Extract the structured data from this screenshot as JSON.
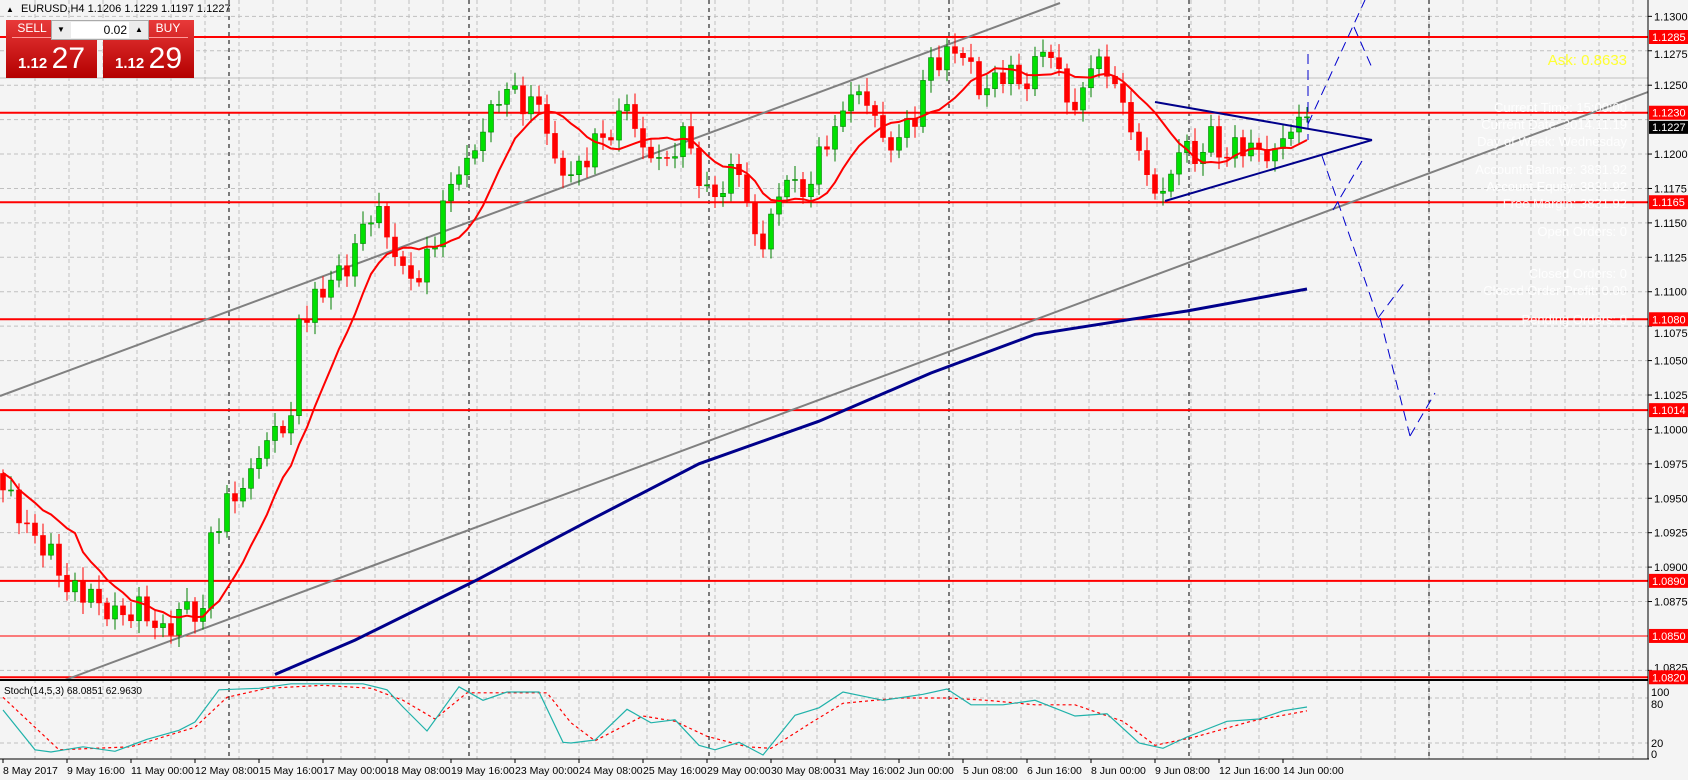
{
  "header": {
    "symbol_label": "EURUSD,H4",
    "ohlc": "1.1206 1.1229 1.1197 1.1227"
  },
  "trade_panel": {
    "sell_label": "SELL",
    "buy_label": "BUY",
    "lot_size": "0.02",
    "sell_price_prefix": "1.12",
    "sell_price_big": "27",
    "buy_price_prefix": "1.12",
    "buy_price_big": "29"
  },
  "info_overlay": {
    "ask": "Ask: 0.8633",
    "lines": [
      "Current Time: 15:00:00",
      "Current Date: 2014.11.19",
      "Day of Week: Wednesday",
      "Account Balance: 3831.92",
      "Account Equity: 3831.92",
      "Free Margin: 3831.92",
      "Open Orders: 0",
      "Closed Orders: 0",
      "Closed Order Profit: 0.00",
      "Pending Orders: 0"
    ]
  },
  "colors": {
    "bull": "#00e000",
    "bear": "#ff0000",
    "level": "#ff0000",
    "ma_fast": "#ff0000",
    "ma_slow": "#00008b",
    "stoch_main": "#20b2aa",
    "stoch_signal": "#ff0000",
    "channel": "#808080"
  },
  "price_axis": {
    "ticks": [
      "1.1300",
      "1.1275",
      "1.1250",
      "1.1200",
      "1.1175",
      "1.1150",
      "1.1125",
      "1.1100",
      "1.1075",
      "1.1050",
      "1.1025",
      "1.1000",
      "1.0975",
      "1.0950",
      "1.0925",
      "1.0900",
      "1.0875",
      "1.0825"
    ],
    "current_price": "1.1227"
  },
  "levels": [
    {
      "price": "1.1285",
      "thin": false
    },
    {
      "price": "1.1230",
      "thin": false
    },
    {
      "price": "1.1165",
      "thin": false
    },
    {
      "price": "1.1080",
      "thin": false
    },
    {
      "price": "1.1014",
      "thin": false
    },
    {
      "price": "1.0890",
      "thin": false
    },
    {
      "price": "1.0850",
      "thin": true
    },
    {
      "price": "1.0820",
      "thin": false
    }
  ],
  "time_axis": [
    "8 May 2017",
    "9 May 16:00",
    "11 May 00:00",
    "12 May 08:00",
    "15 May 16:00",
    "17 May 00:00",
    "18 May 08:00",
    "19 May 16:00",
    "23 May 00:00",
    "24 May 08:00",
    "25 May 16:00",
    "29 May 00:00",
    "30 May 08:00",
    "31 May 16:00",
    "2 Jun 00:00",
    "5 Jun 08:00",
    "6 Jun 16:00",
    "8 Jun 00:00",
    "9 Jun 08:00",
    "12 Jun 16:00",
    "14 Jun 00:00"
  ],
  "chart_data": {
    "type": "candlestick",
    "bar_count": 164,
    "close_waypoints": [
      [
        0,
        1.0956
      ],
      [
        1,
        1.0956
      ],
      [
        3,
        1.0932
      ],
      [
        7,
        1.0894
      ],
      [
        12,
        1.0874
      ],
      [
        20,
        1.0859
      ],
      [
        25,
        1.087
      ],
      [
        26,
        1.0925
      ],
      [
        29,
        1.0948
      ],
      [
        32,
        1.0979
      ],
      [
        36,
        1.101
      ],
      [
        37,
        1.108
      ],
      [
        40,
        1.1096
      ],
      [
        44,
        1.1135
      ],
      [
        47,
        1.1162
      ],
      [
        50,
        1.1119
      ],
      [
        52,
        1.1107
      ],
      [
        55,
        1.1166
      ],
      [
        58,
        1.1197
      ],
      [
        61,
        1.1236
      ],
      [
        63,
        1.1247
      ],
      [
        67,
        1.1236
      ],
      [
        69,
        1.1197
      ],
      [
        71,
        1.1185
      ],
      [
        75,
        1.1212
      ],
      [
        78,
        1.1236
      ],
      [
        80,
        1.1205
      ],
      [
        83,
        1.1197
      ],
      [
        85,
        1.122
      ],
      [
        87,
        1.1177
      ],
      [
        89,
        1.1169
      ],
      [
        92,
        1.1185
      ],
      [
        94,
        1.1142
      ],
      [
        95,
        1.1131
      ],
      [
        98,
        1.1181
      ],
      [
        100,
        1.1169
      ],
      [
        104,
        1.122
      ],
      [
        106,
        1.1243
      ],
      [
        109,
        1.1228
      ],
      [
        110,
        1.1212
      ],
      [
        114,
        1.122
      ],
      [
        116,
        1.127
      ],
      [
        118,
        1.1278
      ],
      [
        120,
        1.127
      ],
      [
        122,
        1.1243
      ],
      [
        124,
        1.1259
      ],
      [
        127,
        1.1251
      ],
      [
        130,
        1.1274
      ],
      [
        132,
        1.1262
      ],
      [
        134,
        1.1232
      ],
      [
        136,
        1.1262
      ],
      [
        139,
        1.1251
      ],
      [
        141,
        1.1216
      ],
      [
        143,
        1.1185
      ],
      [
        145,
        1.1173
      ],
      [
        147,
        1.1201
      ],
      [
        149,
        1.1193
      ],
      [
        151,
        1.122
      ],
      [
        153,
        1.1197
      ],
      [
        156,
        1.1208
      ],
      [
        159,
        1.1204
      ],
      [
        161,
        1.1216
      ],
      [
        163,
        1.1227
      ]
    ],
    "ma_fast_period": 10,
    "ma_slow_points": [
      [
        34,
        1.0822
      ],
      [
        44,
        1.0847
      ],
      [
        59,
        1.089
      ],
      [
        73,
        1.0933
      ],
      [
        87,
        1.0975
      ],
      [
        102,
        1.1006
      ],
      [
        116,
        1.1041
      ],
      [
        129,
        1.1069
      ],
      [
        141,
        1.108
      ],
      [
        148,
        1.1086
      ],
      [
        163,
        1.1102
      ]
    ],
    "stochastic": {
      "label": "Stoch(14,5,3) 68.0851 62.9630",
      "axis_ticks": [
        "100",
        "80",
        "20",
        "0"
      ],
      "main": [
        [
          0,
          64
        ],
        [
          4,
          11
        ],
        [
          6,
          8
        ],
        [
          10,
          15
        ],
        [
          14,
          9
        ],
        [
          18,
          25
        ],
        [
          22,
          37
        ],
        [
          24,
          48
        ],
        [
          27,
          91
        ],
        [
          32,
          93
        ],
        [
          36,
          99
        ],
        [
          45,
          99
        ],
        [
          48,
          91
        ],
        [
          50,
          68
        ],
        [
          53,
          36
        ],
        [
          57,
          95
        ],
        [
          60,
          77
        ],
        [
          63,
          88
        ],
        [
          67,
          88
        ],
        [
          70,
          21
        ],
        [
          71,
          20
        ],
        [
          74,
          24
        ],
        [
          78,
          65
        ],
        [
          81,
          47
        ],
        [
          84,
          51
        ],
        [
          87,
          17
        ],
        [
          89,
          11
        ],
        [
          92,
          21
        ],
        [
          95,
          4
        ],
        [
          99,
          57
        ],
        [
          102,
          67
        ],
        [
          105,
          88
        ],
        [
          110,
          77
        ],
        [
          115,
          85
        ],
        [
          118,
          92
        ],
        [
          121,
          71
        ],
        [
          125,
          71
        ],
        [
          129,
          77
        ],
        [
          134,
          56
        ],
        [
          138,
          59
        ],
        [
          142,
          20
        ],
        [
          145,
          13
        ],
        [
          148,
          28
        ],
        [
          153,
          49
        ],
        [
          157,
          52
        ],
        [
          160,
          63
        ],
        [
          163,
          68
        ]
      ],
      "signal": [
        [
          0,
          81
        ],
        [
          7,
          11
        ],
        [
          16,
          15
        ],
        [
          24,
          41
        ],
        [
          28,
          81
        ],
        [
          33,
          93
        ],
        [
          40,
          97
        ],
        [
          46,
          93
        ],
        [
          50,
          77
        ],
        [
          54,
          52
        ],
        [
          58,
          87
        ],
        [
          64,
          87
        ],
        [
          68,
          87
        ],
        [
          71,
          47
        ],
        [
          74,
          23
        ],
        [
          80,
          56
        ],
        [
          84,
          49
        ],
        [
          88,
          29
        ],
        [
          93,
          15
        ],
        [
          96,
          13
        ],
        [
          101,
          47
        ],
        [
          105,
          73
        ],
        [
          112,
          80
        ],
        [
          118,
          80
        ],
        [
          123,
          77
        ],
        [
          129,
          71
        ],
        [
          134,
          71
        ],
        [
          140,
          49
        ],
        [
          144,
          17
        ],
        [
          149,
          28
        ],
        [
          156,
          49
        ],
        [
          163,
          63
        ]
      ]
    }
  }
}
